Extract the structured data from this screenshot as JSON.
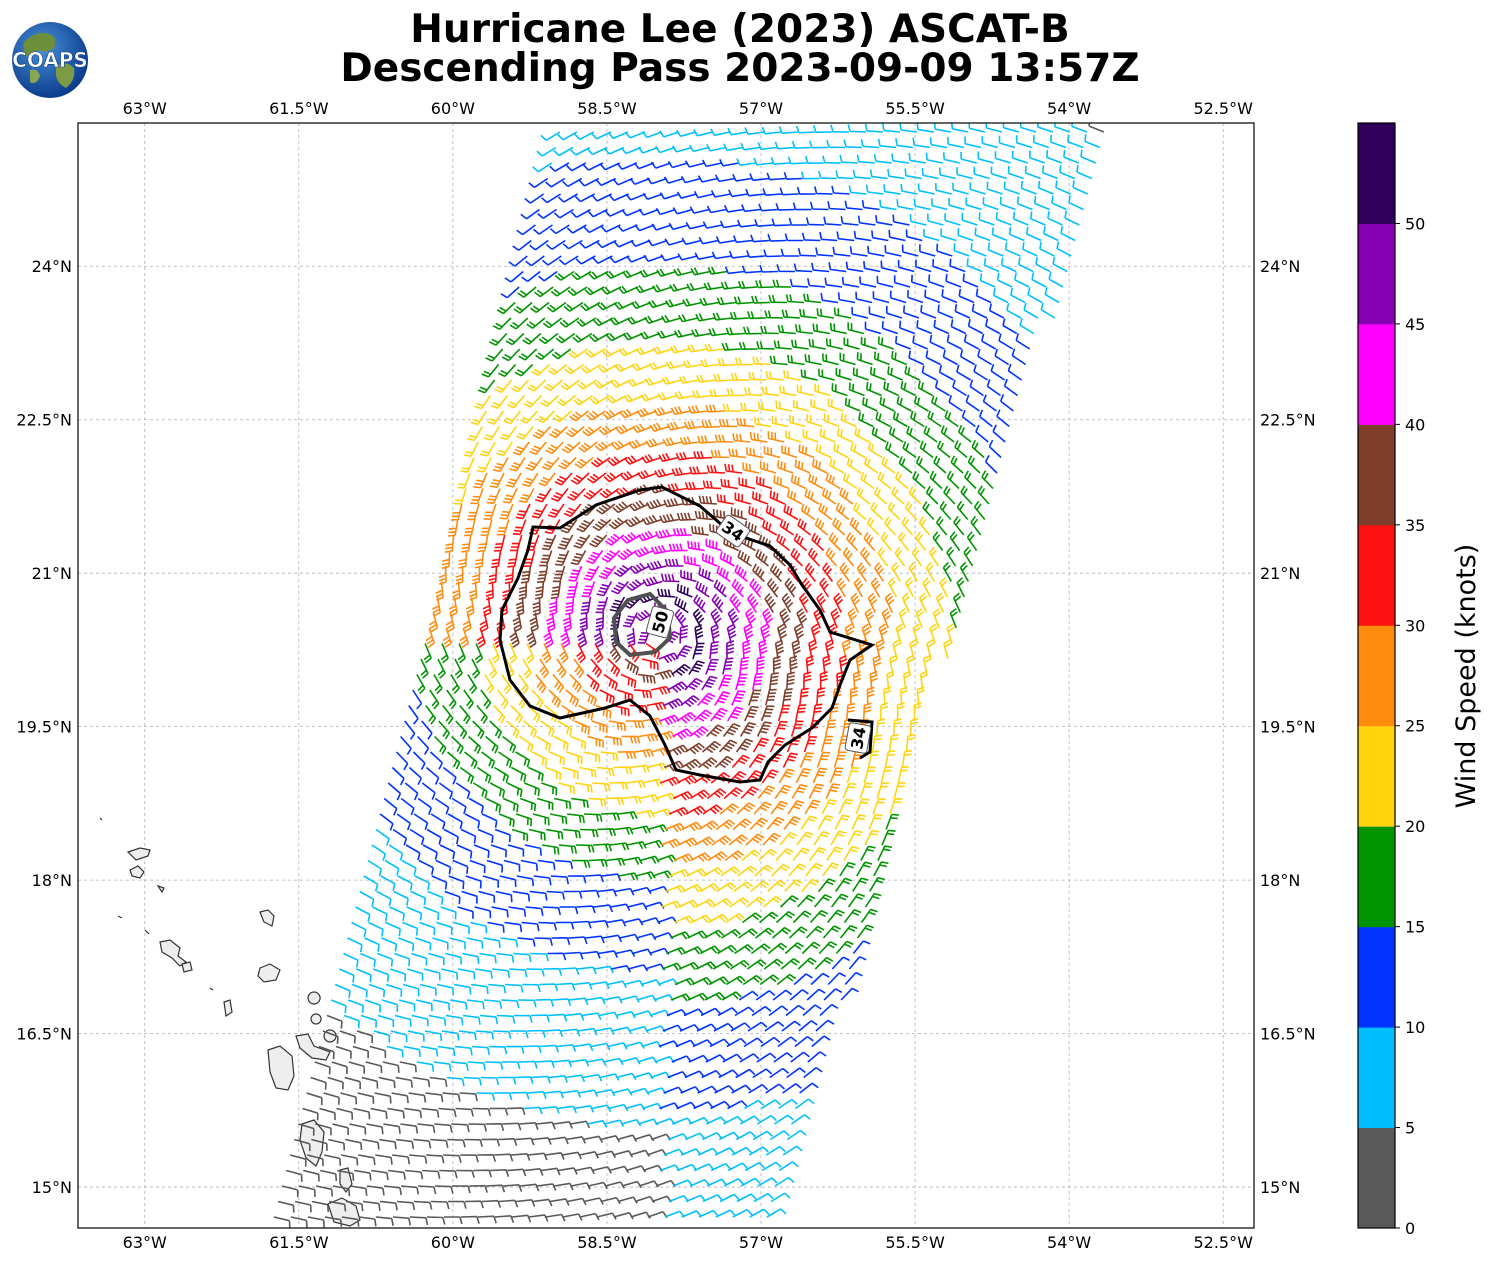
{
  "title": {
    "line1": "Hurricane Lee (2023) ASCAT-B",
    "line2": "Descending Pass 2023-09-09 13:57Z"
  },
  "logo": {
    "text": "COAPS",
    "icon": "globe-logo-icon"
  },
  "map": {
    "lon_ticks": [
      "63°W",
      "61.5°W",
      "60°W",
      "58.5°W",
      "57°W",
      "55.5°W",
      "54°W",
      "52.5°W"
    ],
    "lat_ticks": [
      "24°N",
      "22.5°N",
      "21°N",
      "19.5°N",
      "18°N",
      "16.5°N",
      "15°N"
    ],
    "lon_range": [
      -63.65,
      -52.2
    ],
    "lat_range": [
      14.6,
      25.4
    ],
    "grid": true,
    "center": {
      "lon": -58.0,
      "lat": 20.4
    },
    "contours": [
      {
        "label": "34",
        "knots": 34,
        "color": "#000000"
      },
      {
        "label": "50",
        "knots": 50,
        "color": "#505050"
      }
    ],
    "contour_labels": [
      "34",
      "34",
      "50"
    ]
  },
  "colorbar": {
    "label": "Wind Speed (knots)",
    "tick_labels": [
      "0",
      "5",
      "10",
      "15",
      "20",
      "25",
      "30",
      "35",
      "40",
      "45",
      "50"
    ],
    "bins": [
      {
        "min": 0,
        "max": 5,
        "color": "#595959"
      },
      {
        "min": 5,
        "max": 10,
        "color": "#00bfff"
      },
      {
        "min": 10,
        "max": 15,
        "color": "#0033ff"
      },
      {
        "min": 15,
        "max": 20,
        "color": "#009400"
      },
      {
        "min": 20,
        "max": 25,
        "color": "#ffd40f"
      },
      {
        "min": 25,
        "max": 30,
        "color": "#ff8c0f"
      },
      {
        "min": 30,
        "max": 35,
        "color": "#ff1010"
      },
      {
        "min": 35,
        "max": 40,
        "color": "#7f3e2b"
      },
      {
        "min": 40,
        "max": 45,
        "color": "#ff00ff"
      },
      {
        "min": 45,
        "max": 50,
        "color": "#8600b3"
      },
      {
        "min": 50,
        "max": 55,
        "color": "#2f005c"
      }
    ]
  }
}
